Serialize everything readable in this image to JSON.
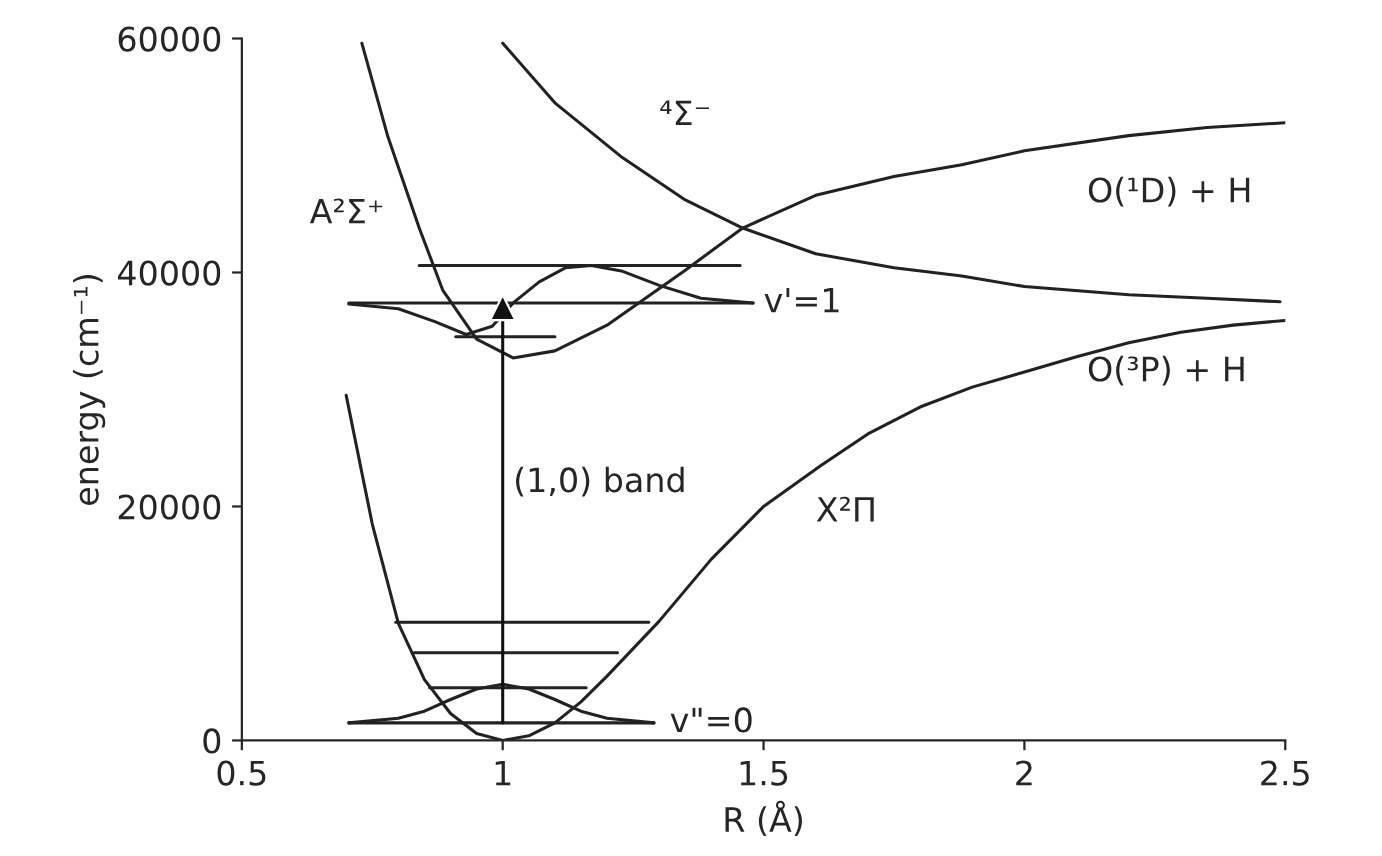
{
  "chart_data": {
    "type": "line",
    "xlabel": "R (Å)",
    "ylabel": "energy (cm⁻¹)",
    "xlim": [
      0.5,
      2.5
    ],
    "xticks": [
      0.5,
      1,
      1.5,
      2,
      2.5
    ],
    "ylim": [
      0,
      60000
    ],
    "yticks": [
      0,
      20000,
      40000,
      60000
    ],
    "grid": false,
    "legend": false,
    "marker": "none",
    "line_style": "solid",
    "series": [
      {
        "color": "#222222",
        "x": [
          0.7,
          0.75,
          0.8,
          0.85,
          0.9,
          0.95,
          1.0,
          1.05,
          1.1,
          1.15,
          1.2,
          1.3,
          1.4,
          1.5,
          1.61,
          1.7,
          1.8,
          1.9,
          2.0,
          2.1,
          2.2,
          2.3,
          2.4,
          2.5
        ],
        "values": [
          29500,
          18500,
          10000,
          5200,
          2300,
          600,
          0,
          400,
          1500,
          3300,
          5500,
          10200,
          15500,
          20000,
          23500,
          26200,
          28500,
          30200,
          31500,
          32800,
          34000,
          34900,
          35500,
          35900
        ]
      },
      {
        "color": "#222222",
        "x": [
          0.73,
          0.78,
          0.84,
          0.885,
          0.95,
          1.02,
          1.1,
          1.2,
          1.35,
          1.46,
          1.6,
          1.75,
          1.88,
          2.0,
          2.2,
          2.35,
          2.5
        ],
        "values": [
          59600,
          51600,
          43800,
          38500,
          34300,
          32700,
          33300,
          35500,
          40200,
          43800,
          46600,
          48200,
          49200,
          50400,
          51700,
          52400,
          52800
        ]
      },
      {
        "color": "#222222",
        "x": [
          1.0,
          1.1,
          1.23,
          1.35,
          1.46,
          1.6,
          1.75,
          1.88,
          2.0,
          2.2,
          2.35,
          2.49
        ],
        "values": [
          59600,
          54500,
          49800,
          46200,
          43800,
          41600,
          40400,
          39700,
          38800,
          38100,
          37800,
          37500
        ]
      },
      {
        "color": "#222222",
        "x": [
          0.705,
          1.29
        ],
        "values": [
          1500,
          1500
        ]
      },
      {
        "color": "#222222",
        "x": [
          0.86,
          1.16
        ],
        "values": [
          4500,
          4500
        ]
      },
      {
        "color": "#222222",
        "x": [
          0.83,
          1.22
        ],
        "values": [
          7500,
          7500
        ]
      },
      {
        "color": "#222222",
        "x": [
          0.795,
          1.28
        ],
        "values": [
          10100,
          10100
        ]
      },
      {
        "color": "#222222",
        "x": [
          0.705,
          0.8,
          0.85,
          0.9,
          0.95,
          1.0,
          1.05,
          1.1,
          1.15,
          1.2,
          1.29
        ],
        "values": [
          1500,
          1900,
          2500,
          3500,
          4400,
          4800,
          4400,
          3500,
          2500,
          1900,
          1500
        ]
      },
      {
        "color": "#222222",
        "x": [
          0.91,
          1.1
        ],
        "values": [
          34500,
          34500
        ]
      },
      {
        "color": "#222222",
        "x": [
          0.705,
          1.48
        ],
        "values": [
          37400,
          37400
        ]
      },
      {
        "color": "#222222",
        "x": [
          0.84,
          1.455
        ],
        "values": [
          40600,
          40600
        ]
      },
      {
        "color": "#222222",
        "x": [
          0.705,
          0.8,
          0.87,
          0.93,
          0.98,
          1.02,
          1.07,
          1.12,
          1.17,
          1.23,
          1.3,
          1.38,
          1.48
        ],
        "values": [
          37300,
          36900,
          35800,
          34700,
          35400,
          37400,
          39200,
          40400,
          40600,
          40100,
          38900,
          37800,
          37400
        ]
      },
      {
        "color": "#111111",
        "x": [
          1.0,
          1.0
        ],
        "values": [
          1500,
          37000
        ],
        "marker": "triangle"
      }
    ],
    "annotations": [
      "A²Σ⁺",
      "⁴Σ⁻",
      "O(¹D) + H",
      "O(³P) + H",
      "X²Π",
      "v'=1",
      "v\"=0",
      "(1,0) band"
    ]
  }
}
